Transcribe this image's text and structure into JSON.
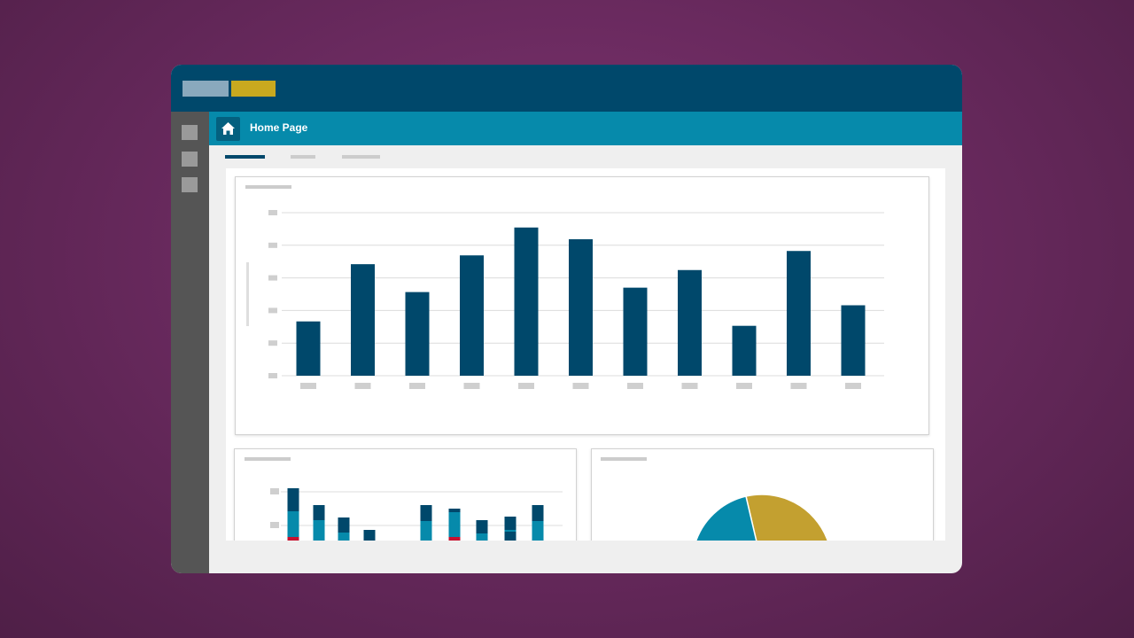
{
  "app": {
    "title_blocks": [
      "app-logo-block-1",
      "app-logo-block-2"
    ],
    "colors": {
      "titlebar": "#00486b",
      "navbar": "#068aab",
      "sidebar": "#555555",
      "accent_gold": "#c9a91f",
      "accent_light": "#8aa9bd"
    }
  },
  "sidebar": {
    "items": [
      "sidebar-item-1",
      "sidebar-item-2",
      "sidebar-item-3"
    ]
  },
  "navbar": {
    "home_icon": "home-icon",
    "page_title": "Home Page"
  },
  "tabs": {
    "active_index": 0,
    "count": 3
  },
  "chart_data": [
    {
      "type": "bar",
      "title": "",
      "categories": [
        "",
        "",
        "",
        "",
        "",
        "",
        "",
        "",
        "",
        "",
        ""
      ],
      "values": [
        37,
        76,
        57,
        82,
        101,
        93,
        60,
        72,
        34,
        85,
        48
      ],
      "ylim": [
        0,
        100
      ],
      "grid": true,
      "bar_color": "#00486b"
    },
    {
      "type": "bar",
      "stacked": true,
      "title": "",
      "categories": [
        "",
        "",
        "",
        "",
        "",
        "",
        "",
        "",
        "",
        "",
        ""
      ],
      "series": [
        {
          "values": [
            4,
            0,
            0,
            0,
            0,
            0,
            4,
            0,
            0,
            0,
            0
          ],
          "color": "#c8102e"
        },
        {
          "values": [
            47,
            36,
            20,
            0,
            0,
            38,
            52,
            28,
            30,
            36,
            36
          ],
          "color": "#068aab"
        },
        {
          "values": [
            42,
            30,
            26,
            18,
            0,
            28,
            6,
            26,
            28,
            30,
            31
          ],
          "color": "#00486b"
        }
      ],
      "grid": true
    },
    {
      "type": "pie",
      "title": "",
      "slices": [
        {
          "value": 68,
          "color": "#c3a030"
        },
        {
          "value": 32,
          "color": "#068aab"
        }
      ]
    }
  ]
}
